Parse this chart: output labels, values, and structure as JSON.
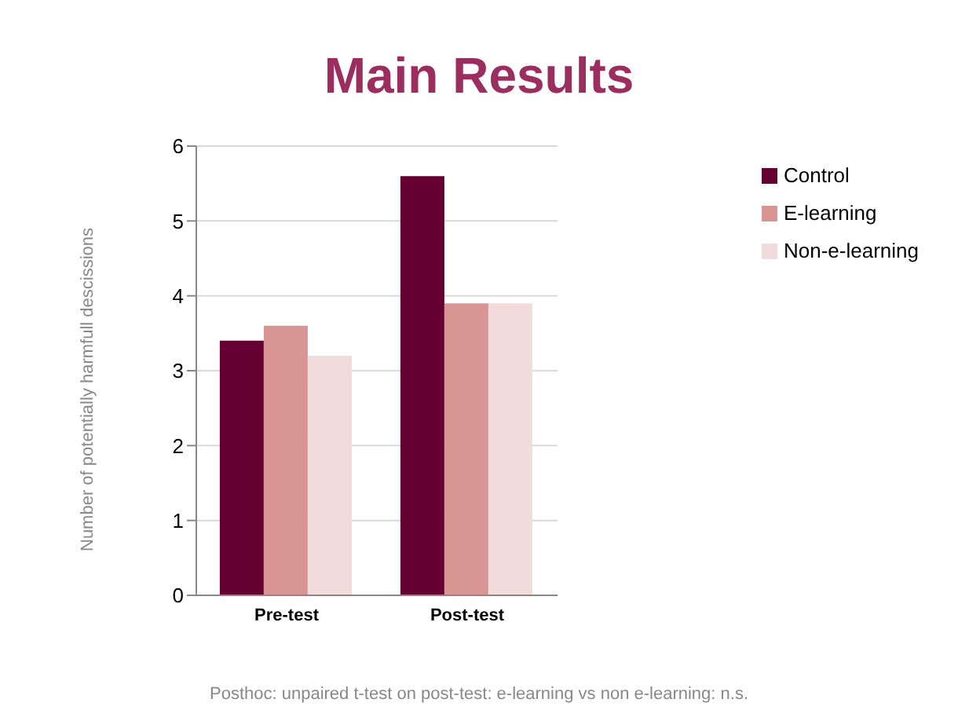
{
  "chart_data": {
    "type": "bar",
    "title": "Main Results",
    "ylabel": "Number of potentially harmfull descissions",
    "categories": [
      "Pre-test",
      "Post-test"
    ],
    "series": [
      {
        "name": "Control",
        "color": "#660033",
        "values": [
          3.4,
          5.6
        ]
      },
      {
        "name": "E-learning",
        "color": "#d99594",
        "values": [
          3.6,
          3.9
        ]
      },
      {
        "name": "Non-e-learning",
        "color": "#f2dcdb",
        "values": [
          3.2,
          3.9
        ]
      }
    ],
    "ylim": [
      0,
      6
    ],
    "yticks": [
      0,
      1,
      2,
      3,
      4,
      5,
      6
    ],
    "grid": "y",
    "legend": "right",
    "annotations": [
      "Posthoc: unpaired t-test on post-test: e-learning vs non e-learning: n.s."
    ]
  }
}
